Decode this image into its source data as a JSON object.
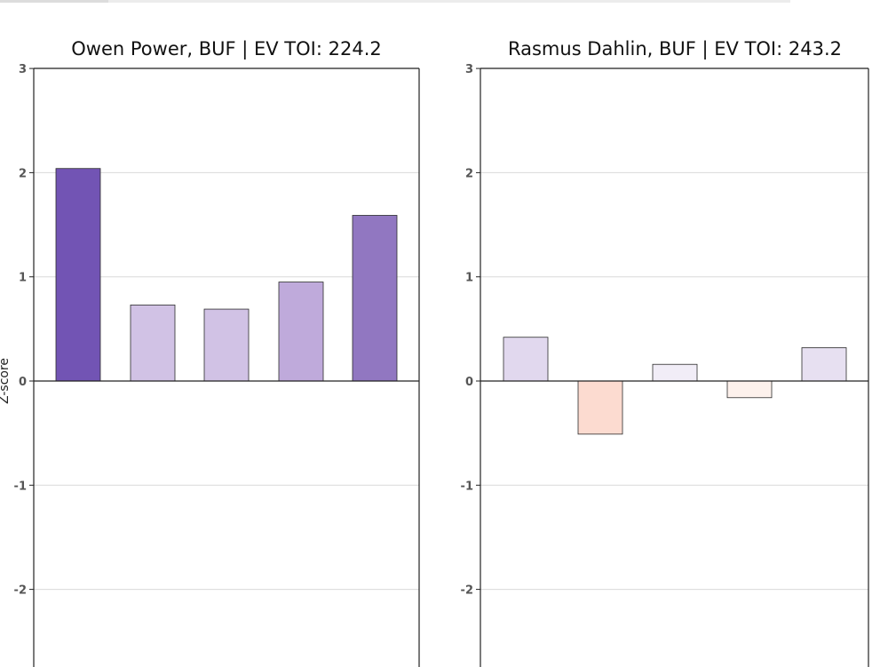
{
  "chart_data": [
    {
      "type": "bar",
      "title": "Owen Power, BUF  |  EV TOI: 224.2",
      "ylabel": "Z-score",
      "xlabel": "",
      "ylim": [
        -2.7,
        3
      ],
      "yticks": [
        3,
        2,
        1,
        0,
        -1,
        -2
      ],
      "ytick_labels": [
        "3",
        "2",
        "1",
        "0",
        "-1",
        "-2"
      ],
      "grid": true,
      "categories": [
        "",
        "",
        "",
        "",
        ""
      ],
      "values": [
        2.04,
        0.73,
        0.69,
        0.95,
        1.59
      ],
      "colors": [
        "#7254b4",
        "#d1c2e5",
        "#d1c2e5",
        "#bfaadb",
        "#9177c1"
      ]
    },
    {
      "type": "bar",
      "title": "Rasmus Dahlin, BUF  |  EV TOI: 243.2",
      "ylabel": "",
      "xlabel": "",
      "ylim": [
        -2.7,
        3
      ],
      "yticks": [
        3,
        2,
        1,
        0,
        -1,
        -2
      ],
      "ytick_labels": [
        "3",
        "2",
        "1",
        "0",
        "-1",
        "-2"
      ],
      "grid": true,
      "categories": [
        "",
        "",
        "",
        "",
        ""
      ],
      "values": [
        0.42,
        -0.51,
        0.16,
        -0.16,
        0.32
      ],
      "colors": [
        "#e1d8ee",
        "#fcdbd0",
        "#f1edf7",
        "#fdf1ec",
        "#e7e0f1"
      ]
    }
  ]
}
